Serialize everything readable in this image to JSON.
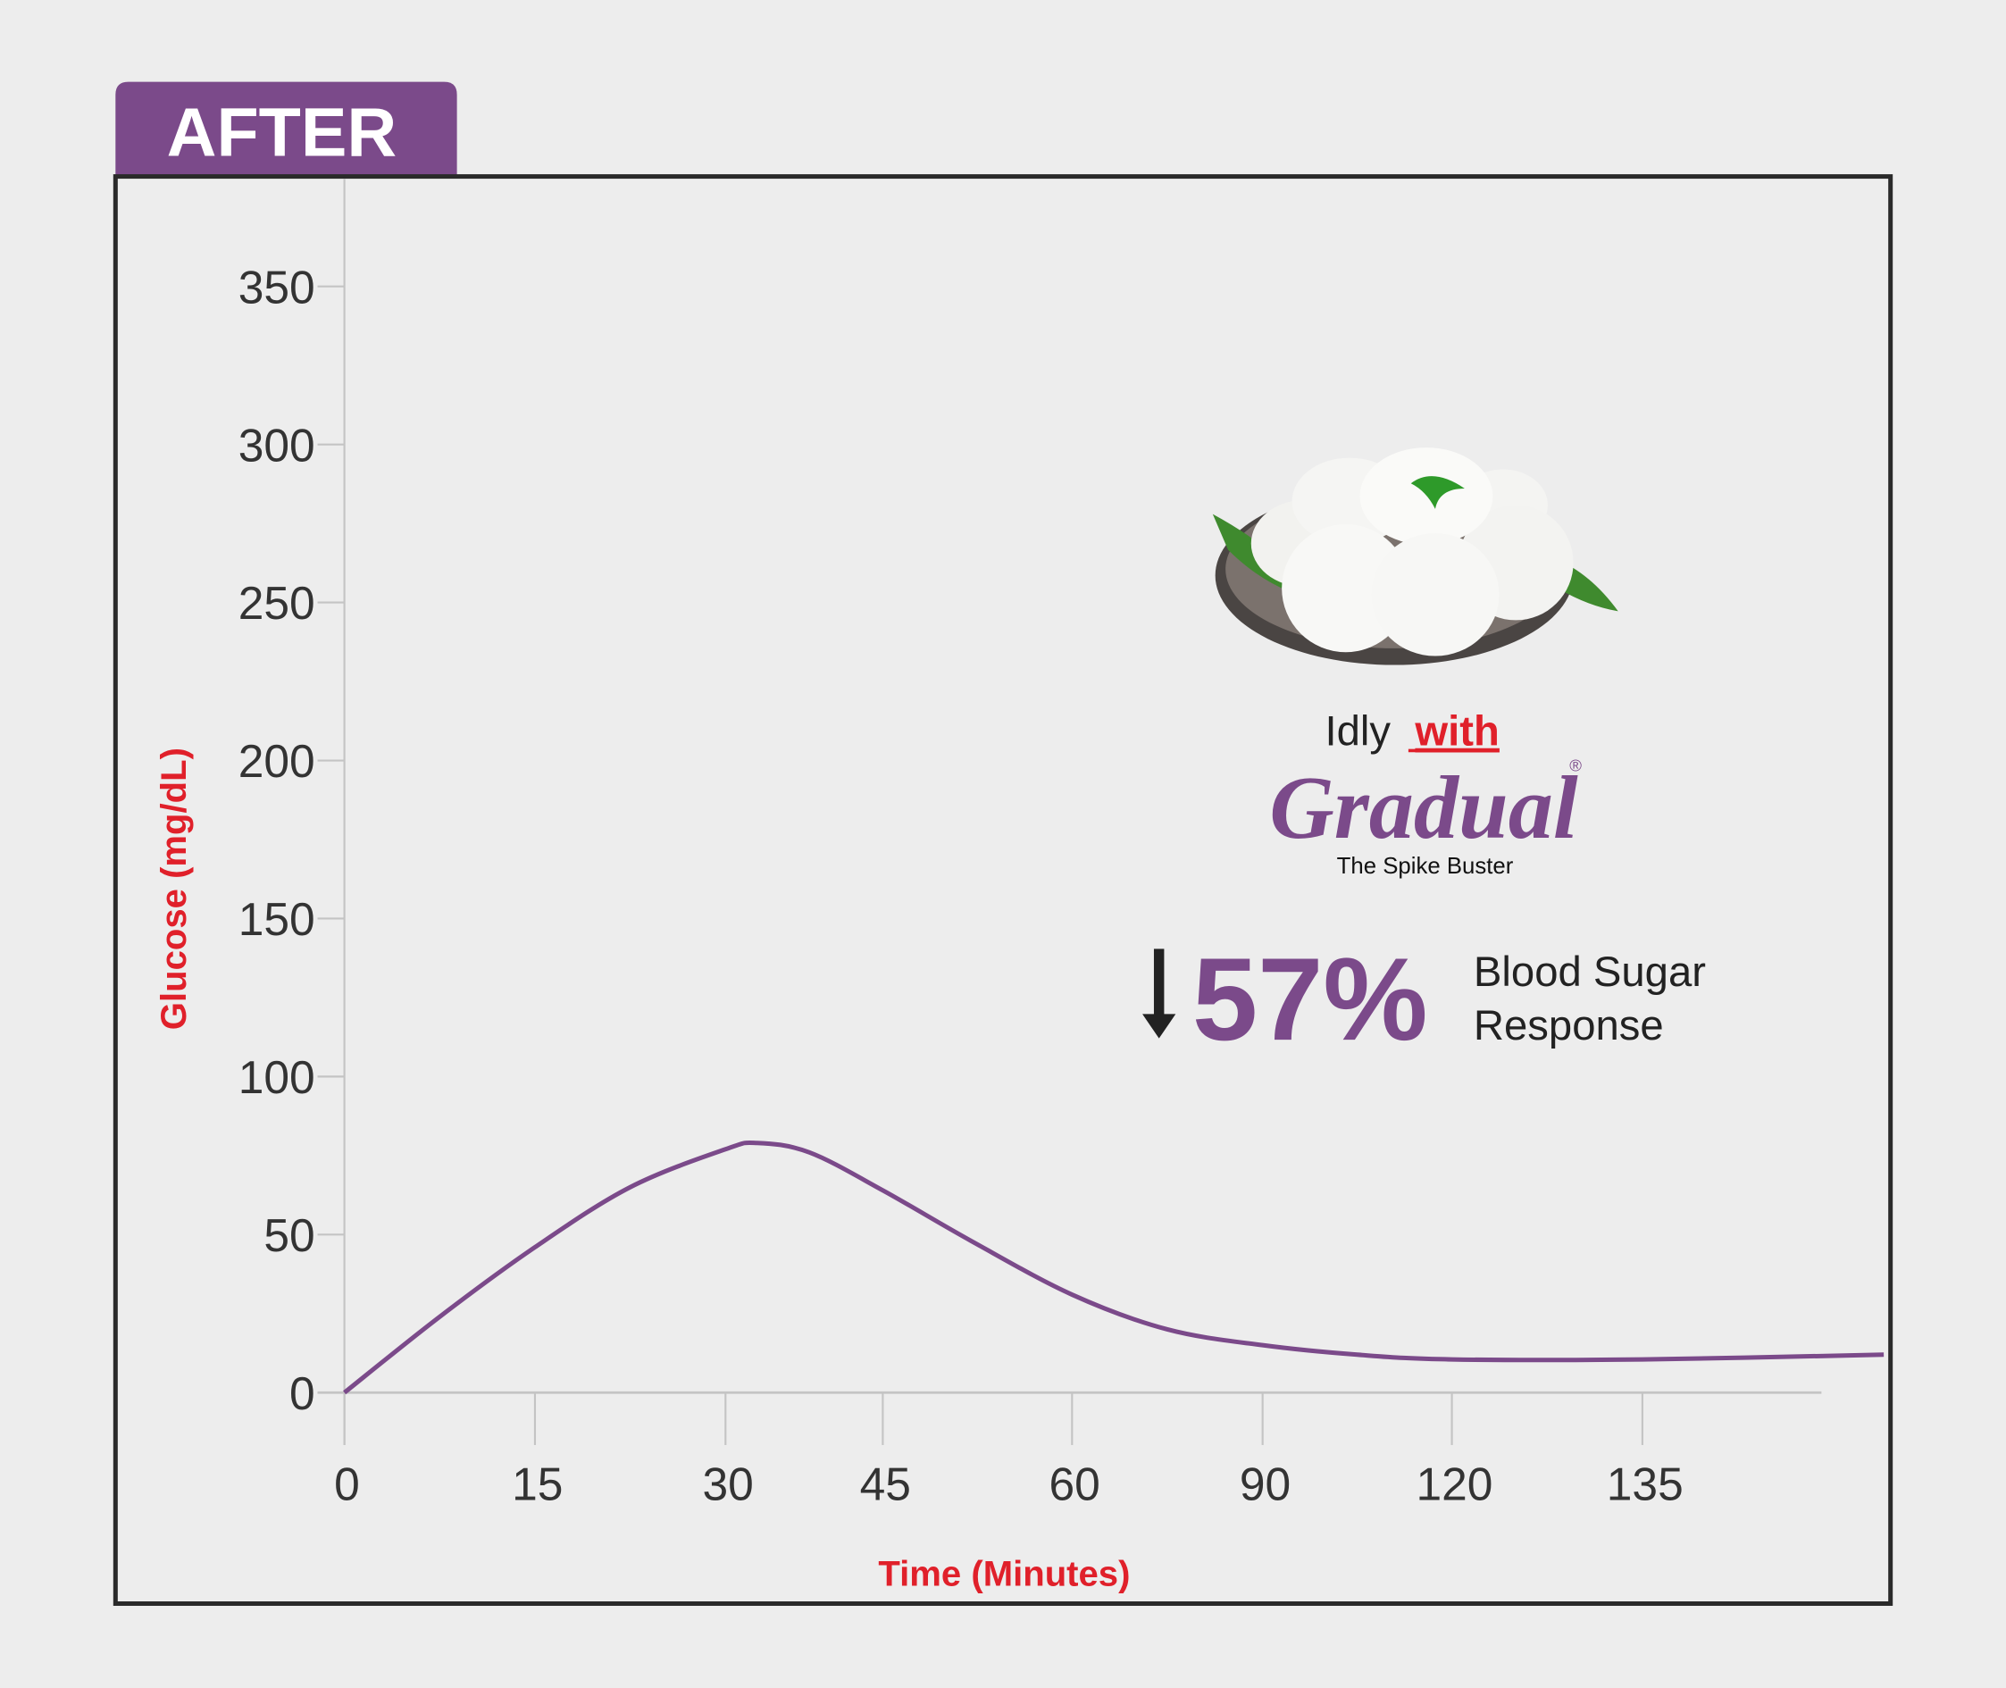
{
  "header": {
    "tab_label": "AFTER"
  },
  "colors": {
    "accent": "#7b4a8a",
    "axis_title": "#e0202a",
    "background": "#ededed",
    "frame": "#2a2a2a"
  },
  "promo": {
    "food_icon": "idly-plate-image",
    "line1_prefix": "Idly",
    "line1_highlight": "with",
    "brand": "Gradual",
    "registered_mark": "®",
    "tagline": "The Spike Buster",
    "arrow_icon": "arrow-down-icon",
    "percent": "57%",
    "result_line1": "Blood Sugar",
    "result_line2": "Response"
  },
  "chart_data": {
    "type": "line",
    "title": "",
    "xlabel": "Time (Minutes)",
    "ylabel": "Glucose (mg/dL)",
    "ylim": [
      0,
      350
    ],
    "yticks": [
      "0",
      "50",
      "100",
      "150",
      "200",
      "250",
      "300",
      "350"
    ],
    "ytick_values": [
      0,
      50,
      100,
      150,
      200,
      250,
      300,
      350
    ],
    "xticks": [
      "0",
      "15",
      "30",
      "45",
      "60",
      "90",
      "120",
      "135"
    ],
    "xtick_values": [
      0,
      15,
      30,
      45,
      60,
      90,
      120,
      135
    ],
    "grid": false,
    "series": [
      {
        "name": "Idly with Gradual",
        "x": [
          0,
          7.5,
          15,
          22.5,
          30,
          33,
          38,
          45,
          52,
          60,
          75,
          90,
          105,
          120,
          135,
          154
        ],
        "y": [
          0,
          24,
          46,
          65,
          77,
          79,
          76,
          64,
          48,
          31,
          20,
          15,
          12,
          10.5,
          10.5,
          12
        ]
      }
    ]
  }
}
